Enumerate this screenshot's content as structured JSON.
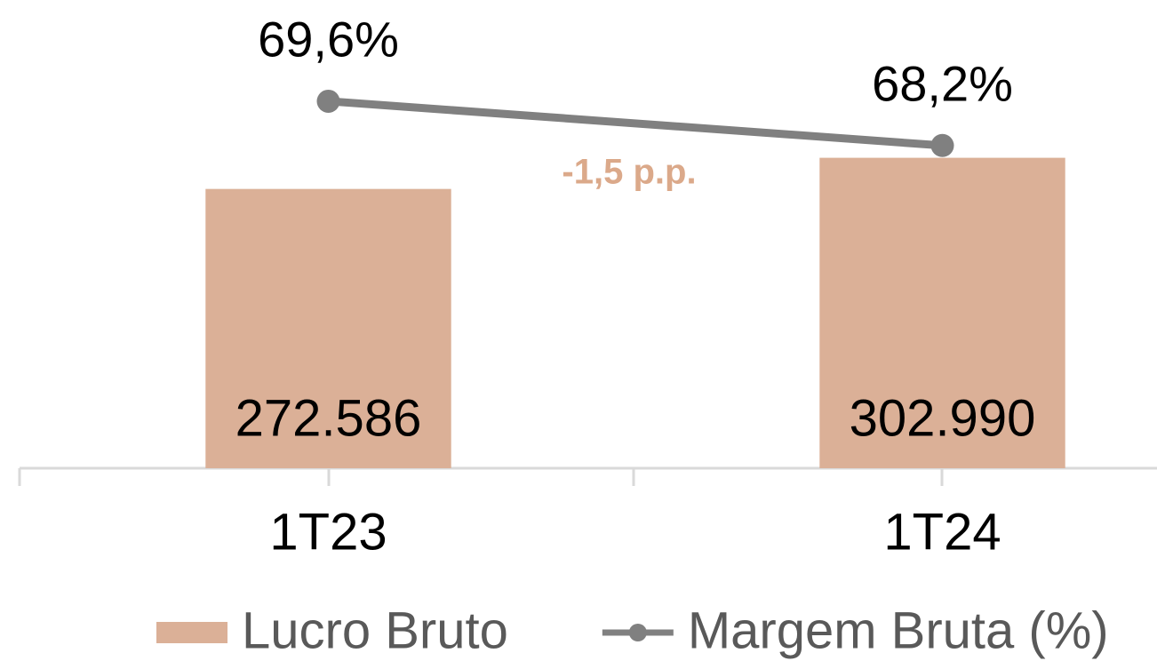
{
  "chart_data": {
    "type": "bar",
    "categories": [
      "1T23",
      "1T24"
    ],
    "ylim": [
      0,
      457000
    ],
    "y2lim": [
      58,
      72.8
    ],
    "series": [
      {
        "name": "Lucro Bruto",
        "type": "bar",
        "color": "#dbb097",
        "values": [
          272586,
          302990
        ],
        "value_labels": [
          "272.586",
          "302.990"
        ]
      },
      {
        "name": "Margem Bruta (%)",
        "type": "line",
        "axis": "y2",
        "color": "#808080",
        "values": [
          69.6,
          68.2
        ],
        "value_labels": [
          "69,6%",
          "68,2%"
        ]
      }
    ],
    "annotations": [
      {
        "text": "-1,5 p.p.",
        "color": "#dba98a"
      }
    ]
  }
}
